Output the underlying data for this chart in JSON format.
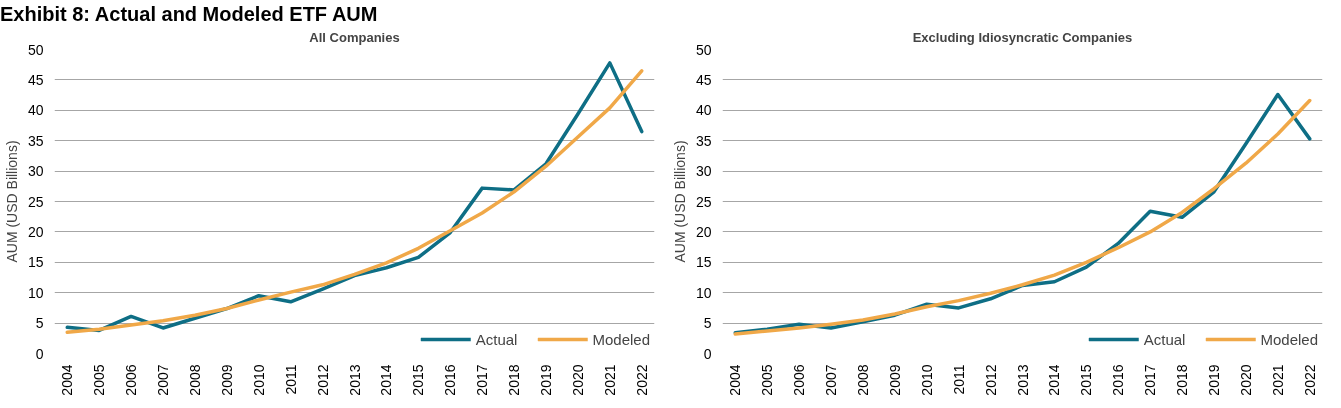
{
  "chart_data": [
    {
      "type": "line",
      "title": "All Companies",
      "ylabel": "AUM (USD Billions)",
      "annotations": [
        "Exhibit 8: Actual and Modeled ETF AUM"
      ],
      "categories": [
        "2004",
        "2005",
        "2006",
        "2007",
        "2008",
        "2009",
        "2010",
        "2011",
        "2012",
        "2013",
        "2014",
        "2015",
        "2016",
        "2017",
        "2018",
        "2019",
        "2020",
        "2021",
        "2022"
      ],
      "series": [
        {
          "name": "Actual",
          "color": "#0e6e85",
          "values": [
            4.3,
            3.8,
            6.1,
            4.2,
            5.8,
            7.4,
            9.5,
            8.5,
            10.6,
            12.8,
            14.1,
            15.8,
            19.9,
            27.2,
            26.9,
            31.2,
            39.4,
            47.8,
            36.5
          ]
        },
        {
          "name": "Modeled",
          "color": "#f0a848",
          "values": [
            3.5,
            4.0,
            4.7,
            5.4,
            6.3,
            7.4,
            8.8,
            10.1,
            11.3,
            13.0,
            14.9,
            17.3,
            20.2,
            23.1,
            26.6,
            30.8,
            35.6,
            40.4,
            46.5
          ]
        }
      ],
      "ylim": [
        0,
        50
      ],
      "yticks": [
        0,
        5,
        10,
        15,
        20,
        25,
        30,
        35,
        40,
        45,
        50
      ],
      "grid": "y",
      "legend": "bottom right",
      "line_style": "solid"
    },
    {
      "type": "line",
      "title": "Excluding Idiosyncratic Companies",
      "ylabel": "AUM (USD Billions)",
      "categories": [
        "2004",
        "2005",
        "2006",
        "2007",
        "2008",
        "2009",
        "2010",
        "2011",
        "2012",
        "2013",
        "2014",
        "2015",
        "2016",
        "2017",
        "2018",
        "2019",
        "2020",
        "2021",
        "2022"
      ],
      "series": [
        {
          "name": "Actual",
          "color": "#0e6e85",
          "values": [
            3.4,
            4.0,
            4.8,
            4.2,
            5.2,
            6.3,
            8.1,
            7.5,
            9.0,
            11.2,
            11.8,
            14.2,
            18.1,
            23.4,
            22.4,
            26.6,
            34.5,
            42.6,
            35.3
          ]
        },
        {
          "name": "Modeled",
          "color": "#f0a848",
          "values": [
            3.2,
            3.7,
            4.2,
            4.8,
            5.5,
            6.5,
            7.7,
            8.7,
            9.9,
            11.3,
            12.9,
            15.0,
            17.4,
            20.0,
            23.2,
            27.1,
            31.3,
            36.1,
            41.6
          ]
        }
      ],
      "ylim": [
        0,
        50
      ],
      "yticks": [
        0,
        5,
        10,
        15,
        20,
        25,
        30,
        35,
        40,
        45,
        50
      ],
      "grid": "y",
      "legend": "bottom right",
      "line_style": "solid"
    }
  ]
}
